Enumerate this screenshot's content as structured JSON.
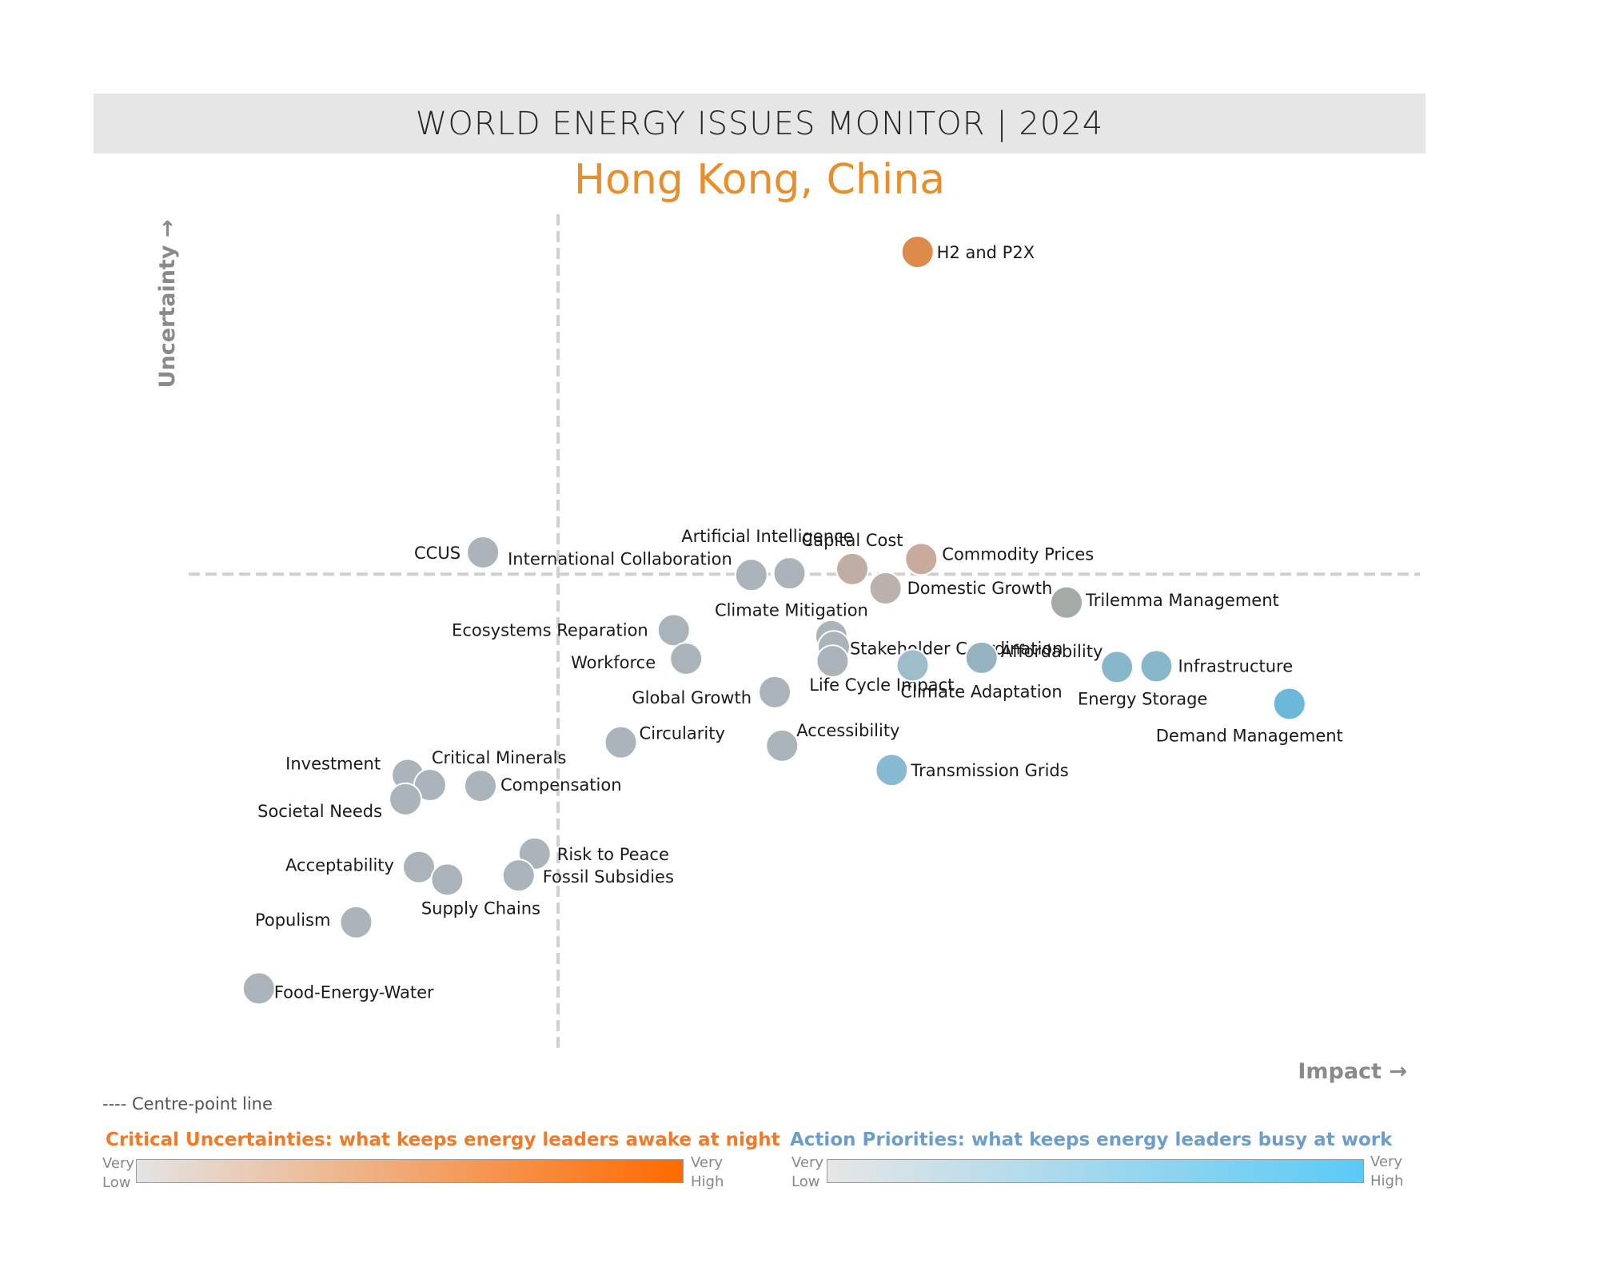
{
  "header": {
    "title": "WORLD ENERGY ISSUES MONITOR | 2024"
  },
  "subtitle": "Hong Kong, China",
  "colors": {
    "uncertainty_accent": "#f07a28",
    "action_accent": "#6d9ec9",
    "neutral_point": "#aab3ba"
  },
  "chart_data": {
    "type": "scatter",
    "xlabel": "Impact →",
    "ylabel": "Uncertainty →",
    "xlim": [
      0,
      100
    ],
    "ylim": [
      0,
      100
    ],
    "centre_lines": {
      "x": 30,
      "y": 57,
      "style": "dashed"
    },
    "points": [
      {
        "label": "H2 and P2X",
        "x": 59.2,
        "y": 95.5,
        "color": "#dd8a4a"
      },
      {
        "label": "CCUS",
        "x": 23.9,
        "y": 59.6,
        "color": "#abb4ba"
      },
      {
        "label": "International Collaboration",
        "x": 45.7,
        "y": 56.9,
        "color": "#abb4ba"
      },
      {
        "label": "Artificial Intelligence",
        "x": 48.8,
        "y": 57.1,
        "color": "#abb4ba"
      },
      {
        "label": "Capital Cost",
        "x": 53.9,
        "y": 57.6,
        "color": "#c0aea4"
      },
      {
        "label": "Commodity Prices",
        "x": 59.5,
        "y": 58.8,
        "color": "#c8ab9c"
      },
      {
        "label": "Domestic Growth",
        "x": 56.6,
        "y": 55.3,
        "color": "#bab1ac"
      },
      {
        "label": "Trilemma Management",
        "x": 71.3,
        "y": 53.6,
        "color": "#a4aaa5"
      },
      {
        "label": "Ecosystems Reparation",
        "x": 39.4,
        "y": 50.3,
        "color": "#abb4ba"
      },
      {
        "label": "Climate Mitigation",
        "x": 52.2,
        "y": 49.6,
        "color": "#abb4ba"
      },
      {
        "label": "Stakeholder Coordination",
        "x": 52.4,
        "y": 48.3,
        "color": "#abb4ba"
      },
      {
        "label": "Workforce",
        "x": 40.4,
        "y": 46.9,
        "color": "#abb4ba"
      },
      {
        "label": "Life Cycle Impact",
        "x": 52.3,
        "y": 46.6,
        "color": "#abb4ba"
      },
      {
        "label": "Affordability",
        "x": 64.4,
        "y": 47.0,
        "color": "#96b3c2"
      },
      {
        "label": "Climate Adaptation",
        "x": 58.8,
        "y": 46.1,
        "color": "#9ebccc"
      },
      {
        "label": "Energy Storage",
        "x": 75.4,
        "y": 45.9,
        "color": "#88b7cb"
      },
      {
        "label": "Infrastructure",
        "x": 78.6,
        "y": 46.0,
        "color": "#88b7cb"
      },
      {
        "label": "Global Growth",
        "x": 47.6,
        "y": 42.9,
        "color": "#abb4ba"
      },
      {
        "label": "Demand Management",
        "x": 89.4,
        "y": 41.5,
        "color": "#6cb8da"
      },
      {
        "label": "Circularity",
        "x": 35.1,
        "y": 36.9,
        "color": "#abb4ba"
      },
      {
        "label": "Accessibility",
        "x": 48.2,
        "y": 36.5,
        "color": "#abb4ba"
      },
      {
        "label": "Transmission Grids",
        "x": 57.1,
        "y": 33.6,
        "color": "#88bbd2"
      },
      {
        "label": "Investment",
        "x": 17.8,
        "y": 33.0,
        "color": "#abb4ba"
      },
      {
        "label": "Critical Minerals",
        "x": 19.6,
        "y": 31.8,
        "color": "#abb4ba"
      },
      {
        "label": "Compensation",
        "x": 23.7,
        "y": 31.7,
        "color": "#abb4ba"
      },
      {
        "label": "Societal Needs",
        "x": 17.6,
        "y": 30.1,
        "color": "#abb4ba"
      },
      {
        "label": "Risk to Peace",
        "x": 28.1,
        "y": 23.6,
        "color": "#abb4ba"
      },
      {
        "label": "Fossil Subsidies",
        "x": 26.8,
        "y": 21.0,
        "color": "#abb4ba"
      },
      {
        "label": "Acceptability",
        "x": 18.7,
        "y": 22.0,
        "color": "#abb4ba"
      },
      {
        "label": "Supply Chains",
        "x": 21.0,
        "y": 20.5,
        "color": "#abb4ba"
      },
      {
        "label": "Populism",
        "x": 13.6,
        "y": 15.4,
        "color": "#abb4ba"
      },
      {
        "label": "Food-Energy-Water",
        "x": 5.7,
        "y": 7.5,
        "color": "#abb4ba"
      }
    ]
  },
  "legend": {
    "centre_line": "---- Centre-point line",
    "uncertainties": {
      "title": "Critical Uncertainties: what keeps energy leaders awake at night",
      "low_1": "Very",
      "low_2": "Low",
      "high_1": "Very",
      "high_2": "High"
    },
    "priorities": {
      "title": "Action Priorities: what keeps energy leaders busy at work",
      "low_1": "Very",
      "low_2": "Low",
      "high_1": "Very",
      "high_2": "High"
    }
  }
}
